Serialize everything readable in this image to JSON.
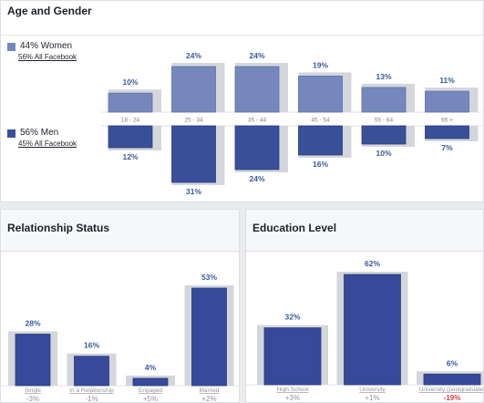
{
  "age_gender": {
    "title": "Age and Gender",
    "women_label": "44% Women",
    "women_sub": "56% All Facebook",
    "men_label": "56% Men",
    "men_sub": "45% All Facebook"
  },
  "relationship": {
    "title": "Relationship Status"
  },
  "education": {
    "title": "Education Level"
  },
  "colors": {
    "women": "#7587bc",
    "men": "#3a4f9a",
    "bar": "#38499a",
    "background_bar": "#d3d6db",
    "label": "#3b5998",
    "positive": "#90949c",
    "negative": "#e0393e"
  },
  "chart_data": [
    {
      "type": "bar",
      "title": "Age and Gender",
      "categories": [
        "18 - 24",
        "25 - 34",
        "35 - 44",
        "45 - 54",
        "55 - 64",
        "65 +"
      ],
      "series": [
        {
          "name": "44% Women",
          "values": [
            10,
            24,
            24,
            19,
            13,
            11
          ]
        },
        {
          "name": "56% Men",
          "values": [
            12,
            31,
            24,
            16,
            10,
            7
          ]
        }
      ],
      "labels_women": [
        "10%",
        "24%",
        "24%",
        "19%",
        "13%",
        "11%"
      ],
      "labels_men": [
        "12%",
        "31%",
        "24%",
        "16%",
        "10%",
        "7%"
      ]
    },
    {
      "type": "bar",
      "title": "Relationship Status",
      "categories": [
        "Single",
        "In a Relationship",
        "Engaged",
        "Married"
      ],
      "values": [
        28,
        16,
        4,
        53
      ],
      "value_labels": [
        "28%",
        "16%",
        "4%",
        "53%"
      ],
      "comparison": [
        "-3%",
        "-1%",
        "+5%",
        "+2%"
      ]
    },
    {
      "type": "bar",
      "title": "Education Level",
      "categories": [
        "High School",
        "University",
        "University (postgraduate)"
      ],
      "values": [
        32,
        62,
        6
      ],
      "value_labels": [
        "32%",
        "62%",
        "6%"
      ],
      "comparison": [
        "+3%",
        "+1%",
        "-19%"
      ]
    }
  ]
}
